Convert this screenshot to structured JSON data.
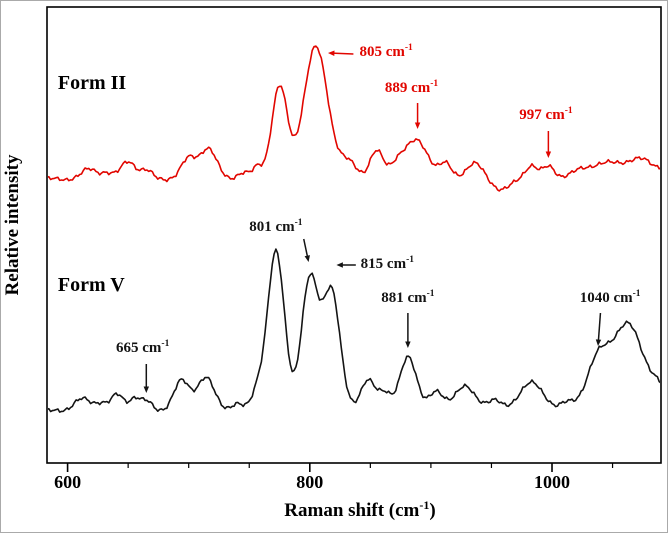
{
  "figure": {
    "background": "#ffffff",
    "border_color": "#aaaaaa"
  },
  "chart_data": {
    "type": "line",
    "title": "",
    "xlabel": {
      "pre": "Raman shift (cm",
      "sup": "-1",
      "post": ")"
    },
    "ylabel": "Relative intensity",
    "xlim": [
      583,
      1090
    ],
    "x_major_ticks": [
      600,
      800,
      1000
    ],
    "x_minor_step": 50,
    "ylim": [
      0,
      2.28
    ],
    "grid": false,
    "legend_position": "none",
    "series": [
      {
        "name": "Form II",
        "label": "Form II",
        "color": "#e10600",
        "offset": 1.42,
        "label_pos": [
          592,
          0.45
        ],
        "peaks": [
          [
            618,
            0.05,
            6
          ],
          [
            632,
            0.03,
            5
          ],
          [
            650,
            0.09,
            6
          ],
          [
            665,
            0.04,
            5
          ],
          [
            700,
            0.1,
            6
          ],
          [
            716,
            0.15,
            7
          ],
          [
            745,
            0.03,
            5
          ],
          [
            757,
            0.06,
            4
          ],
          [
            775,
            0.46,
            6.5
          ],
          [
            805,
            0.66,
            10
          ],
          [
            832,
            0.08,
            7
          ],
          [
            855,
            0.14,
            5.5
          ],
          [
            872,
            0.06,
            6
          ],
          [
            888,
            0.19,
            10
          ],
          [
            912,
            0.07,
            5
          ],
          [
            936,
            0.08,
            7
          ],
          [
            958,
            -0.05,
            8
          ],
          [
            983,
            0.07,
            5
          ],
          [
            997,
            0.06,
            5
          ],
          [
            1020,
            0.03,
            8
          ],
          [
            1043,
            0.08,
            12
          ],
          [
            1072,
            0.1,
            11
          ],
          [
            1102,
            0.09,
            9
          ],
          [
            1118,
            0.06,
            6
          ]
        ]
      },
      {
        "name": "Form V",
        "label": "Form V",
        "color": "#141414",
        "offset": 0.26,
        "label_pos": [
          592,
          0.6
        ],
        "peaks": [
          [
            612,
            0.06,
            7
          ],
          [
            628,
            0.04,
            5
          ],
          [
            641,
            0.08,
            5
          ],
          [
            656,
            0.07,
            5
          ],
          [
            666,
            0.04,
            4
          ],
          [
            694,
            0.15,
            6.5
          ],
          [
            714,
            0.17,
            7
          ],
          [
            740,
            0.04,
            5
          ],
          [
            757,
            0.09,
            5
          ],
          [
            772,
            0.8,
            7
          ],
          [
            800,
            0.66,
            7
          ],
          [
            818,
            0.6,
            7
          ],
          [
            848,
            0.16,
            6
          ],
          [
            862,
            0.08,
            5
          ],
          [
            881,
            0.27,
            7
          ],
          [
            904,
            0.1,
            6
          ],
          [
            928,
            0.13,
            8
          ],
          [
            953,
            0.06,
            6
          ],
          [
            983,
            0.15,
            9
          ],
          [
            1012,
            0.05,
            6
          ],
          [
            1038,
            0.26,
            9
          ],
          [
            1063,
            0.44,
            12
          ],
          [
            1088,
            0.1,
            7
          ],
          [
            1105,
            0.1,
            8
          ]
        ]
      }
    ],
    "annotations": [
      {
        "id": "805",
        "series": 0,
        "text": "805 cm",
        "sup": "-1",
        "anchor": "start",
        "text_pos": [
          841,
          0.615
        ],
        "arrow": {
          "from": [
            836,
            0.625
          ],
          "to": [
            815,
            0.63
          ]
        }
      },
      {
        "id": "889",
        "series": 0,
        "text": "889 cm",
        "sup": "-1",
        "anchor": "middle",
        "text_pos": [
          884,
          0.435
        ],
        "arrow": {
          "from": [
            889,
            0.38
          ],
          "to": [
            889,
            0.25
          ]
        }
      },
      {
        "id": "997",
        "series": 0,
        "text": "997 cm",
        "sup": "-1",
        "anchor": "middle",
        "text_pos": [
          995,
          0.3
        ],
        "arrow": {
          "from": [
            997,
            0.24
          ],
          "to": [
            997,
            0.105
          ]
        }
      },
      {
        "id": "801",
        "series": 1,
        "text": "801 cm",
        "sup": "-1",
        "anchor": "middle",
        "text_pos": [
          772,
          0.9
        ],
        "arrow": {
          "from": [
            795,
            0.86
          ],
          "to": [
            799,
            0.745
          ]
        }
      },
      {
        "id": "815",
        "series": 1,
        "text": "815 cm",
        "sup": "-1",
        "anchor": "start",
        "text_pos": [
          842,
          0.715
        ],
        "arrow": {
          "from": [
            838,
            0.73
          ],
          "to": [
            822,
            0.73
          ]
        }
      },
      {
        "id": "881",
        "series": 1,
        "text": "881 cm",
        "sup": "-1",
        "anchor": "middle",
        "text_pos": [
          881,
          0.545
        ],
        "arrow": {
          "from": [
            881,
            0.49
          ],
          "to": [
            881,
            0.315
          ]
        }
      },
      {
        "id": "1040",
        "series": 1,
        "text": "1040 cm",
        "sup": "-1",
        "anchor": "middle",
        "text_pos": [
          1048,
          0.545
        ],
        "arrow": {
          "from": [
            1040,
            0.49
          ],
          "to": [
            1038,
            0.325
          ]
        }
      },
      {
        "id": "665",
        "series": 1,
        "text": "665 cm",
        "sup": "-1",
        "anchor": "middle",
        "text_pos": [
          662,
          0.295
        ],
        "arrow": {
          "from": [
            665,
            0.235
          ],
          "to": [
            665,
            0.09
          ]
        }
      }
    ]
  }
}
